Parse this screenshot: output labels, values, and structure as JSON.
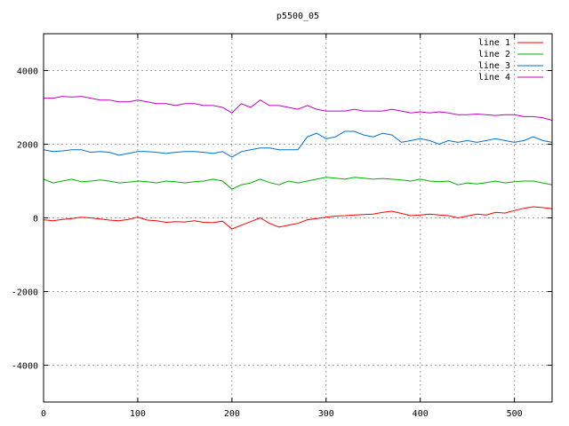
{
  "chart_data": {
    "type": "line",
    "title": "p5500_05",
    "xlabel": "",
    "ylabel": "",
    "xlim": [
      0,
      540
    ],
    "ylim": [
      -5000,
      5000
    ],
    "xticks": [
      0,
      100,
      200,
      300,
      400,
      500
    ],
    "yticks": [
      -4000,
      -2000,
      0,
      2000,
      4000
    ],
    "grid": true,
    "legend_position": "top-right",
    "x": [
      0,
      10,
      20,
      30,
      40,
      50,
      60,
      70,
      80,
      90,
      100,
      110,
      120,
      130,
      140,
      150,
      160,
      170,
      180,
      190,
      200,
      210,
      220,
      230,
      240,
      250,
      260,
      270,
      280,
      290,
      300,
      310,
      320,
      330,
      340,
      350,
      360,
      370,
      380,
      390,
      400,
      410,
      420,
      430,
      440,
      450,
      460,
      470,
      480,
      490,
      500,
      510,
      520,
      530,
      540
    ],
    "series": [
      {
        "name": "line 1",
        "color": "#ff0000",
        "values": [
          -50,
          -80,
          -40,
          -20,
          20,
          0,
          -30,
          -60,
          -80,
          -40,
          20,
          -60,
          -80,
          -120,
          -100,
          -110,
          -80,
          -120,
          -130,
          -90,
          -300,
          -200,
          -100,
          0,
          -150,
          -250,
          -200,
          -150,
          -50,
          -20,
          20,
          50,
          60,
          80,
          90,
          100,
          150,
          180,
          120,
          60,
          80,
          100,
          80,
          60,
          0,
          50,
          100,
          80,
          150,
          130,
          200,
          260,
          300,
          280,
          250
        ]
      },
      {
        "name": "line 2",
        "color": "#00b000",
        "values": [
          1050,
          950,
          1000,
          1050,
          980,
          1000,
          1030,
          1000,
          950,
          970,
          1000,
          980,
          950,
          1000,
          980,
          950,
          980,
          1000,
          1050,
          1000,
          780,
          900,
          950,
          1050,
          960,
          900,
          1000,
          950,
          1000,
          1050,
          1100,
          1080,
          1050,
          1100,
          1080,
          1050,
          1070,
          1050,
          1030,
          1000,
          1050,
          1000,
          980,
          1000,
          900,
          950,
          920,
          960,
          1000,
          950,
          980,
          1000,
          1000,
          950,
          900
        ]
      },
      {
        "name": "line 3",
        "color": "#0070d0",
        "values": [
          1850,
          1800,
          1820,
          1850,
          1850,
          1780,
          1800,
          1780,
          1700,
          1750,
          1800,
          1800,
          1780,
          1750,
          1780,
          1800,
          1800,
          1780,
          1750,
          1800,
          1650,
          1800,
          1850,
          1900,
          1900,
          1850,
          1850,
          1850,
          2200,
          2300,
          2150,
          2200,
          2350,
          2350,
          2250,
          2200,
          2300,
          2250,
          2050,
          2100,
          2150,
          2100,
          2000,
          2100,
          2050,
          2100,
          2050,
          2100,
          2150,
          2100,
          2050,
          2100,
          2200,
          2100,
          2050
        ]
      },
      {
        "name": "line 4",
        "color": "#c000c0",
        "values": [
          3250,
          3250,
          3300,
          3280,
          3300,
          3250,
          3200,
          3200,
          3150,
          3150,
          3200,
          3150,
          3100,
          3100,
          3050,
          3100,
          3100,
          3050,
          3050,
          3000,
          2850,
          3100,
          3000,
          3200,
          3050,
          3050,
          3000,
          2950,
          3050,
          2950,
          2900,
          2900,
          2900,
          2950,
          2900,
          2900,
          2900,
          2950,
          2900,
          2850,
          2880,
          2850,
          2880,
          2850,
          2800,
          2800,
          2820,
          2800,
          2780,
          2800,
          2800,
          2750,
          2750,
          2720,
          2650
        ]
      }
    ]
  }
}
